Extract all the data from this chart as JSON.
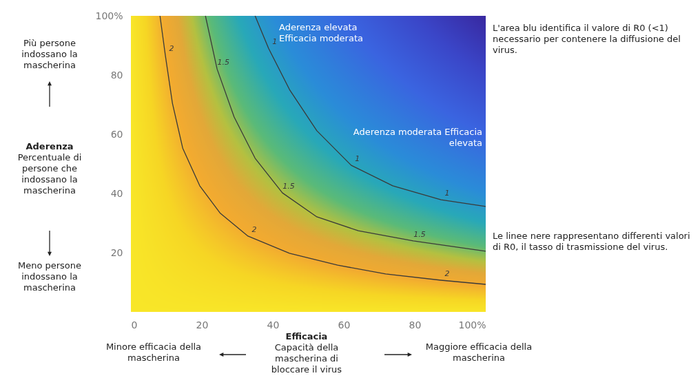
{
  "chart_data": {
    "type": "line",
    "xlabel": "Efficacia",
    "ylabel": "Aderenza",
    "xlim": [
      0,
      100
    ],
    "ylim": [
      0,
      100
    ],
    "xticks": [
      0,
      20,
      40,
      60,
      80,
      {
        "value": 100,
        "label": "100%"
      }
    ],
    "yticks": [
      20,
      40,
      60,
      80,
      {
        "value": 100,
        "label": "100%"
      }
    ],
    "grid": false,
    "legend": false,
    "marker": "none",
    "line_style": "solid",
    "series": [
      {
        "name": "2",
        "color": "#3a3a3a",
        "x": [
          8.2,
          9.7,
          11.7,
          14.6,
          19.4,
          25.2,
          33,
          44.7,
          58.3,
          71.8,
          87.4,
          100
        ],
        "values": [
          100,
          86.7,
          70.5,
          55.3,
          42.6,
          33.3,
          25.6,
          19.8,
          15.8,
          12.8,
          10.7,
          9.3
        ]
      },
      {
        "name": "1.5",
        "color": "#3a3a3a",
        "x": [
          21,
          24.3,
          29.1,
          35,
          42.7,
          52.4,
          64.1,
          79.6,
          100
        ],
        "values": [
          100,
          82,
          65.8,
          51.9,
          40.2,
          32.1,
          27.4,
          24,
          20.5
        ]
      },
      {
        "name": "1",
        "color": "#3a3a3a",
        "x": [
          35,
          38.8,
          44.7,
          52.4,
          62.1,
          73.8,
          87.4,
          100
        ],
        "values": [
          100,
          89,
          75.1,
          61.2,
          49.5,
          42.6,
          37.9,
          35.6
        ]
      }
    ],
    "annotations": [
      "Più persone indossano la mascherina",
      "Percentuale di persone che indossano la mascherina",
      "Meno persone indossano la mascherina",
      "Aderenza elevata Efficacia moderata",
      "Aderenza moderata Efficacia elevata",
      "L'area blu identifica il valore di R0 (<1) necessario per contenere la diffusione del virus.",
      "Le linee nere rappresentano differenti valori di R0, il tasso di trasmissione del virus.",
      "Minore efficacia della mascherina",
      "Capacità della mascherina di bloccare il virus",
      "Maggiore efficacia della mascherina"
    ]
  }
}
